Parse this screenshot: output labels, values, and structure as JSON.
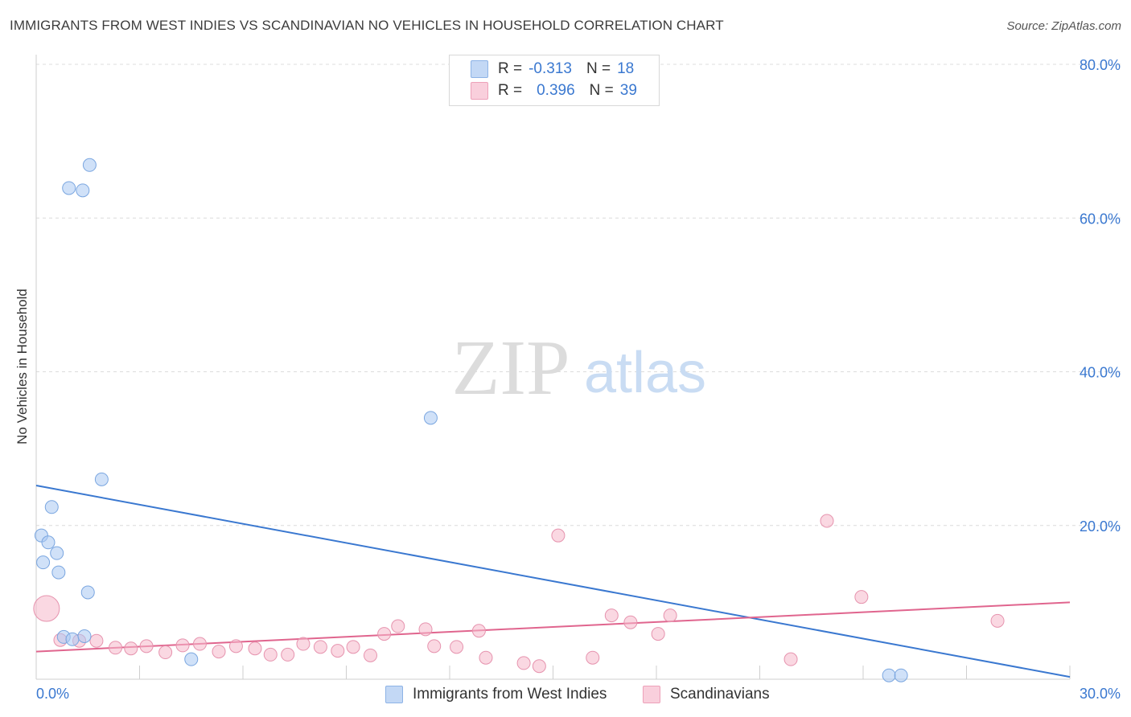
{
  "title": "IMMIGRANTS FROM WEST INDIES VS SCANDINAVIAN NO VEHICLES IN HOUSEHOLD CORRELATION CHART",
  "source": "Source: ZipAtlas.com",
  "watermark": {
    "zip": "ZIP",
    "atlas": "atlas"
  },
  "legend": {
    "r_label": "R =",
    "n_label": "N =",
    "rows": [
      {
        "r": "-0.313",
        "n": "18",
        "color": "#a9c8f2"
      },
      {
        "r": "0.396",
        "n": "39",
        "color": "#f5b8cb"
      }
    ]
  },
  "colors": {
    "blue": "#3a78d0",
    "pink": "#e0658e",
    "tick": "#3a78d0"
  },
  "chart_data": {
    "type": "scatter",
    "title": "IMMIGRANTS FROM WEST INDIES VS SCANDINAVIAN NO VEHICLES IN HOUSEHOLD CORRELATION CHART",
    "xlabel": "",
    "ylabel": "No Vehicles in Household",
    "xlim": [
      0,
      30
    ],
    "ylim": [
      0,
      80
    ],
    "x_tick_labels": [
      "0.0%",
      "30.0%"
    ],
    "y_tick_labels": [
      "20.0%",
      "40.0%",
      "60.0%",
      "80.0%"
    ],
    "y_ticks": [
      20,
      40,
      60,
      80
    ],
    "grid": true,
    "legend_position": "top-center",
    "series": [
      {
        "name": "Immigrants from West Indies",
        "color": "#a9c8f2",
        "points": [
          [
            0.15,
            18.7
          ],
          [
            0.2,
            15.2
          ],
          [
            0.35,
            17.8
          ],
          [
            0.45,
            22.4
          ],
          [
            0.6,
            16.4
          ],
          [
            0.65,
            13.9
          ],
          [
            0.8,
            5.5
          ],
          [
            0.95,
            63.9
          ],
          [
            1.05,
            5.2
          ],
          [
            1.35,
            63.6
          ],
          [
            1.4,
            5.6
          ],
          [
            1.5,
            11.3
          ],
          [
            1.55,
            66.9
          ],
          [
            1.9,
            26.0
          ],
          [
            4.5,
            2.6
          ],
          [
            11.45,
            34.0
          ],
          [
            24.75,
            0.5
          ],
          [
            25.1,
            0.5
          ]
        ],
        "trend": [
          [
            0,
            25.2
          ],
          [
            30,
            0.3
          ]
        ],
        "trend_color": "#3a78d0"
      },
      {
        "name": "Scandinavians",
        "color": "#f5b8cb",
        "points": [
          [
            0.3,
            9.2
          ],
          [
            0.7,
            5.1
          ],
          [
            1.25,
            5.0
          ],
          [
            1.75,
            5.0
          ],
          [
            2.3,
            4.1
          ],
          [
            2.75,
            4.0
          ],
          [
            3.2,
            4.3
          ],
          [
            3.75,
            3.5
          ],
          [
            4.25,
            4.4
          ],
          [
            4.75,
            4.6
          ],
          [
            5.3,
            3.6
          ],
          [
            5.8,
            4.3
          ],
          [
            6.35,
            4.0
          ],
          [
            6.8,
            3.2
          ],
          [
            7.3,
            3.2
          ],
          [
            7.75,
            4.6
          ],
          [
            8.25,
            4.2
          ],
          [
            8.75,
            3.7
          ],
          [
            9.2,
            4.2
          ],
          [
            9.7,
            3.1
          ],
          [
            10.1,
            5.9
          ],
          [
            10.5,
            6.9
          ],
          [
            11.3,
            6.5
          ],
          [
            11.55,
            4.3
          ],
          [
            12.2,
            4.2
          ],
          [
            12.85,
            6.3
          ],
          [
            13.05,
            2.8
          ],
          [
            14.15,
            2.1
          ],
          [
            14.6,
            1.7
          ],
          [
            15.15,
            18.7
          ],
          [
            16.15,
            2.8
          ],
          [
            16.7,
            8.3
          ],
          [
            17.25,
            7.4
          ],
          [
            18.05,
            5.9
          ],
          [
            18.4,
            8.3
          ],
          [
            21.9,
            2.6
          ],
          [
            22.95,
            20.6
          ],
          [
            23.95,
            10.7
          ],
          [
            27.9,
            7.6
          ]
        ],
        "trend": [
          [
            0,
            3.6
          ],
          [
            30,
            10.0
          ]
        ],
        "trend_color": "#e0658e"
      }
    ]
  }
}
